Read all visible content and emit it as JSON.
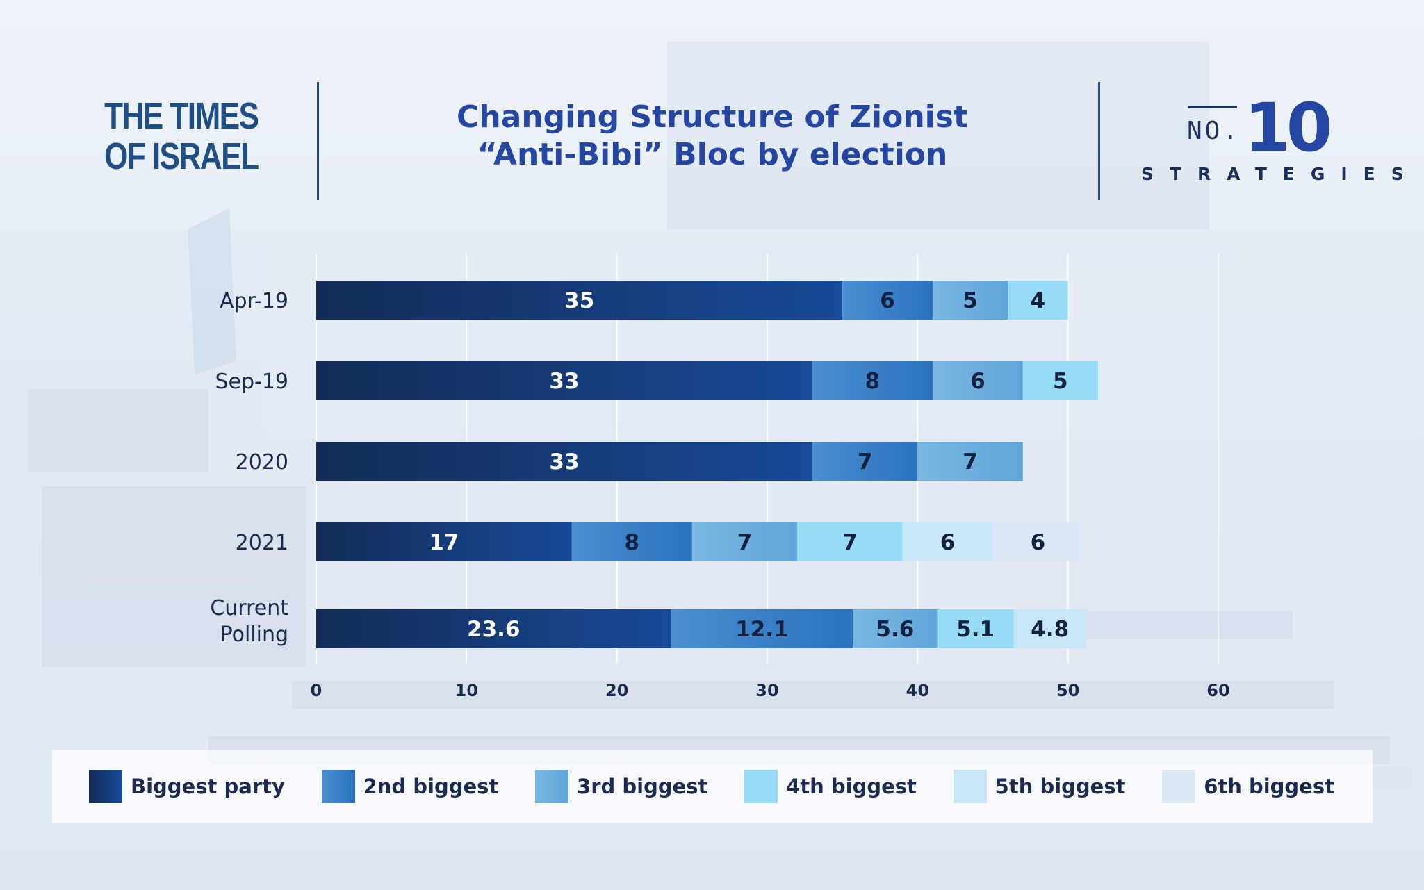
{
  "brand": {
    "left_logo_lines": [
      "THE TIMES",
      "OF ISRAEL"
    ],
    "right_logo_no": "NO.",
    "right_logo_num": "10",
    "right_logo_word": "STRATEGIES"
  },
  "colors": {
    "biggest": "#163a78",
    "second": "#2f7fc7",
    "third": "#6aaede",
    "fourth": "#96dcf7",
    "fifth": "#c9e6f6",
    "sixth": "#dde9f6",
    "title": "#2546a3"
  },
  "chart_data": {
    "type": "bar",
    "orientation": "horizontal",
    "stacked": true,
    "title": "Changing Structure of Zionist “Anti-Bibi” Bloc by election",
    "title_lines": [
      "Changing Structure of Zionist",
      "“Anti-Bibi” Bloc by election"
    ],
    "categories": [
      "Apr-19",
      "Sep-19",
      "2020",
      "2021",
      "Current Polling"
    ],
    "series": [
      {
        "name": "Biggest party",
        "values": [
          35,
          33,
          33,
          17,
          23.6
        ]
      },
      {
        "name": "2nd biggest",
        "values": [
          6,
          8,
          7,
          8,
          12.1
        ]
      },
      {
        "name": "3rd biggest",
        "values": [
          5,
          6,
          7,
          7,
          5.6
        ]
      },
      {
        "name": "4th biggest",
        "values": [
          4,
          5,
          null,
          7,
          5.1
        ]
      },
      {
        "name": "5th biggest",
        "values": [
          null,
          null,
          null,
          6,
          4.8
        ]
      },
      {
        "name": "6th biggest",
        "values": [
          null,
          null,
          null,
          6,
          null
        ]
      }
    ],
    "xlim": [
      0,
      60
    ],
    "xticks": [
      "0",
      "10",
      "20",
      "30",
      "40",
      "50",
      "60"
    ],
    "grid": true,
    "legend": "bottom"
  }
}
